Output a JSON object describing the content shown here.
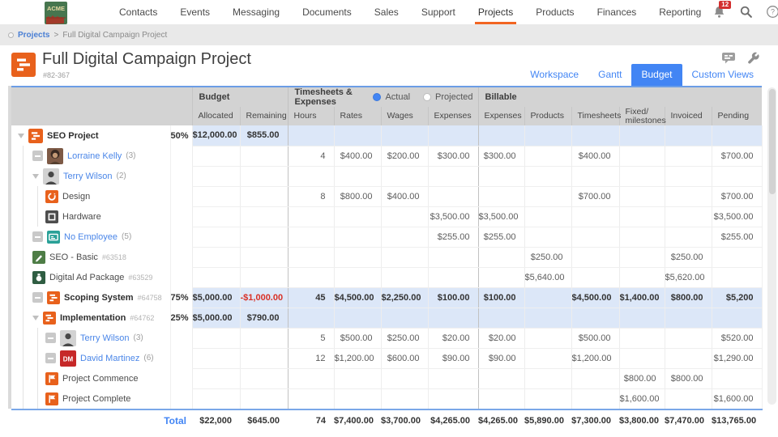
{
  "nav": {
    "logo": "ACME",
    "items": [
      {
        "label": "Contacts"
      },
      {
        "label": "Events"
      },
      {
        "label": "Messaging"
      },
      {
        "label": "Documents"
      },
      {
        "label": "Sales"
      },
      {
        "label": "Support"
      },
      {
        "label": "Projects",
        "active": true
      },
      {
        "label": "Products"
      },
      {
        "label": "Finances"
      },
      {
        "label": "Reporting"
      }
    ],
    "notification_count": "12"
  },
  "breadcrumb": {
    "root": "Projects",
    "separator": ">",
    "current": "Full Digital Campaign Project"
  },
  "header": {
    "title": "Full Digital Campaign Project",
    "project_code": "#82-367",
    "tabs": [
      {
        "label": "Workspace"
      },
      {
        "label": "Gantt"
      },
      {
        "label": "Budget",
        "active": true
      },
      {
        "label": "Custom Views"
      }
    ]
  },
  "table": {
    "groups": {
      "budget": "Budget",
      "timesheets": "Timesheets & Expenses",
      "billable": "Billable"
    },
    "radios": {
      "actual": "Actual",
      "projected": "Projected",
      "selected": "Actual"
    },
    "columns": [
      "Allocated",
      "Remaining",
      "Hours",
      "Rates",
      "Wages",
      "Expenses",
      "Expenses",
      "Products",
      "Timesheets",
      "Fixed/\nmilestones",
      "Invoiced",
      "Pending"
    ],
    "rows": [
      {
        "label": "SEO Project",
        "meta": "",
        "icon": "project-icon",
        "kind": "summary",
        "indent": 0,
        "expander": "triangle",
        "bold": true,
        "highlight": true,
        "values": [
          "50%",
          "$12,000.00",
          "$855.00",
          "",
          "",
          "",
          "",
          "",
          "",
          "",
          "",
          "",
          ""
        ]
      },
      {
        "label": "Lorraine Kelly",
        "meta": "(3)",
        "icon": "avatar-lorraine-icon",
        "kind": "person",
        "indent": 1,
        "expander": "minus",
        "bold": false,
        "highlight": false,
        "values": [
          "",
          "",
          "",
          "4",
          "$400.00",
          "$200.00",
          "$300.00",
          "$300.00",
          "",
          "$400.00",
          "",
          "",
          "$700.00"
        ]
      },
      {
        "label": "Terry Wilson",
        "meta": "(2)",
        "icon": "avatar-terry-icon",
        "kind": "person",
        "indent": 1,
        "expander": "triangle",
        "bold": false,
        "highlight": false,
        "values": [
          "",
          "",
          "",
          "",
          "",
          "",
          "",
          "",
          "",
          "",
          "",
          "",
          ""
        ]
      },
      {
        "label": "Design",
        "meta": "",
        "icon": "design-icon",
        "kind": "item",
        "indent": 2,
        "expander": "none",
        "bold": false,
        "highlight": false,
        "values": [
          "",
          "",
          "",
          "8",
          "$800.00",
          "$400.00",
          "",
          "",
          "",
          "$700.00",
          "",
          "",
          "$700.00"
        ]
      },
      {
        "label": "Hardware",
        "meta": "",
        "icon": "hardware-icon",
        "kind": "item",
        "indent": 2,
        "expander": "none",
        "bold": false,
        "highlight": false,
        "values": [
          "",
          "",
          "",
          "",
          "",
          "",
          "$3,500.00",
          "$3,500.00",
          "",
          "",
          "",
          "",
          "$3,500.00"
        ]
      },
      {
        "label": "No Employee",
        "meta": "(5)",
        "icon": "idcard-icon",
        "kind": "person",
        "indent": 1,
        "expander": "minus",
        "bold": false,
        "highlight": false,
        "values": [
          "",
          "",
          "",
          "",
          "",
          "",
          "$255.00",
          "$255.00",
          "",
          "",
          "",
          "",
          "$255.00"
        ]
      },
      {
        "label": "SEO - Basic",
        "meta": "#63518",
        "icon": "pen-icon",
        "kind": "item",
        "indent": 1,
        "expander": "none",
        "bold": false,
        "highlight": false,
        "values": [
          "",
          "",
          "",
          "",
          "",
          "",
          "",
          "",
          "$250.00",
          "",
          "",
          "$250.00",
          ""
        ]
      },
      {
        "label": "Digital Ad Package",
        "meta": "#63529",
        "icon": "package-icon",
        "kind": "item",
        "indent": 1,
        "expander": "none",
        "bold": false,
        "highlight": false,
        "values": [
          "",
          "",
          "",
          "",
          "",
          "",
          "",
          "",
          "$5,640.00",
          "",
          "",
          "$5,620.00",
          ""
        ]
      },
      {
        "label": "Scoping System",
        "meta": "#64758",
        "icon": "project-icon",
        "kind": "summary",
        "indent": 1,
        "expander": "minus",
        "bold": true,
        "highlight": true,
        "values": [
          "75%",
          "$5,000.00",
          "-$1,000.00",
          "45",
          "$4,500.00",
          "$2,250.00",
          "$100.00",
          "$100.00",
          "",
          "$4,500.00",
          "$1,400.00",
          "$800.00",
          "$5,200"
        ]
      },
      {
        "label": "Implementation",
        "meta": "#64762",
        "icon": "project-icon",
        "kind": "summary",
        "indent": 1,
        "expander": "triangle",
        "bold": true,
        "highlight": true,
        "values": [
          "25%",
          "$5,000.00",
          "$790.00",
          "",
          "",
          "",
          "",
          "",
          "",
          "",
          "",
          "",
          ""
        ]
      },
      {
        "label": "Terry Wilson",
        "meta": "(3)",
        "icon": "avatar-terry-icon",
        "kind": "person",
        "indent": 2,
        "expander": "minus",
        "bold": false,
        "highlight": false,
        "values": [
          "",
          "",
          "",
          "5",
          "$500.00",
          "$250.00",
          "$20.00",
          "$20.00",
          "",
          "$500.00",
          "",
          "",
          "$520.00"
        ]
      },
      {
        "label": "David Martinez",
        "meta": "(6)",
        "icon": "avatar-dm-icon",
        "kind": "person",
        "indent": 2,
        "expander": "minus",
        "bold": false,
        "highlight": false,
        "values": [
          "",
          "",
          "",
          "12",
          "$1,200.00",
          "$600.00",
          "$90.00",
          "$90.00",
          "",
          "$1,200.00",
          "",
          "",
          "$1,290.00"
        ]
      },
      {
        "label": "Project Commence",
        "meta": "",
        "icon": "flag-icon",
        "kind": "item",
        "indent": 2,
        "expander": "none",
        "bold": false,
        "highlight": false,
        "values": [
          "",
          "",
          "",
          "",
          "",
          "",
          "",
          "",
          "",
          "",
          "$800.00",
          "$800.00",
          ""
        ]
      },
      {
        "label": "Project Complete",
        "meta": "",
        "icon": "flag-icon",
        "kind": "item",
        "indent": 2,
        "expander": "none",
        "bold": false,
        "highlight": false,
        "values": [
          "",
          "",
          "",
          "",
          "",
          "",
          "",
          "",
          "",
          "",
          "$1,600.00",
          "",
          "$1,600.00"
        ]
      }
    ],
    "total_label": "Total",
    "total_values": [
      "$22,000",
      "$645.00",
      "74",
      "$7,400.00",
      "$3,700.00",
      "$4,265.00",
      "$4,265.00",
      "$5,890.00",
      "$7,300.00",
      "$3,800.00",
      "$7,470.00",
      "$13,765.00"
    ]
  },
  "colors": {
    "accent_orange": "#f26522",
    "accent_blue": "#4285f4",
    "negative_red": "#d93025",
    "highlight_blue": "#dce7f8"
  }
}
